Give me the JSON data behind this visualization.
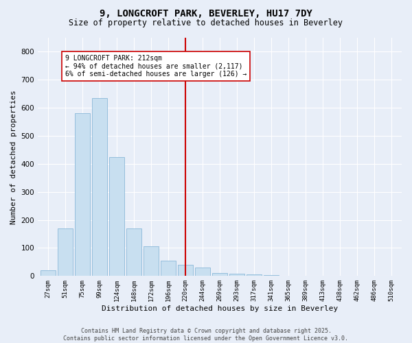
{
  "title": "9, LONGCROFT PARK, BEVERLEY, HU17 7DY",
  "subtitle": "Size of property relative to detached houses in Beverley",
  "xlabel": "Distribution of detached houses by size in Beverley",
  "ylabel": "Number of detached properties",
  "categories": [
    "27sqm",
    "51sqm",
    "75sqm",
    "99sqm",
    "124sqm",
    "148sqm",
    "172sqm",
    "196sqm",
    "220sqm",
    "244sqm",
    "269sqm",
    "293sqm",
    "317sqm",
    "341sqm",
    "365sqm",
    "389sqm",
    "413sqm",
    "438sqm",
    "462sqm",
    "486sqm",
    "510sqm"
  ],
  "values": [
    20,
    170,
    580,
    635,
    425,
    170,
    105,
    55,
    40,
    30,
    10,
    8,
    5,
    4,
    2,
    1,
    0,
    1,
    0,
    0,
    1
  ],
  "bar_color": "#c8dff0",
  "bar_edge_color": "#8ab8d8",
  "vline_idx": 8,
  "vline_color": "#cc0000",
  "annotation_text": "9 LONGCROFT PARK: 212sqm\n← 94% of detached houses are smaller (2,117)\n6% of semi-detached houses are larger (126) →",
  "annotation_box_edge": "#cc0000",
  "ylim": [
    0,
    850
  ],
  "yticks": [
    0,
    100,
    200,
    300,
    400,
    500,
    600,
    700,
    800
  ],
  "footer_line1": "Contains HM Land Registry data © Crown copyright and database right 2025.",
  "footer_line2": "Contains public sector information licensed under the Open Government Licence v3.0.",
  "bg_color": "#e8eef8",
  "plot_bg_color": "#e8eef8"
}
